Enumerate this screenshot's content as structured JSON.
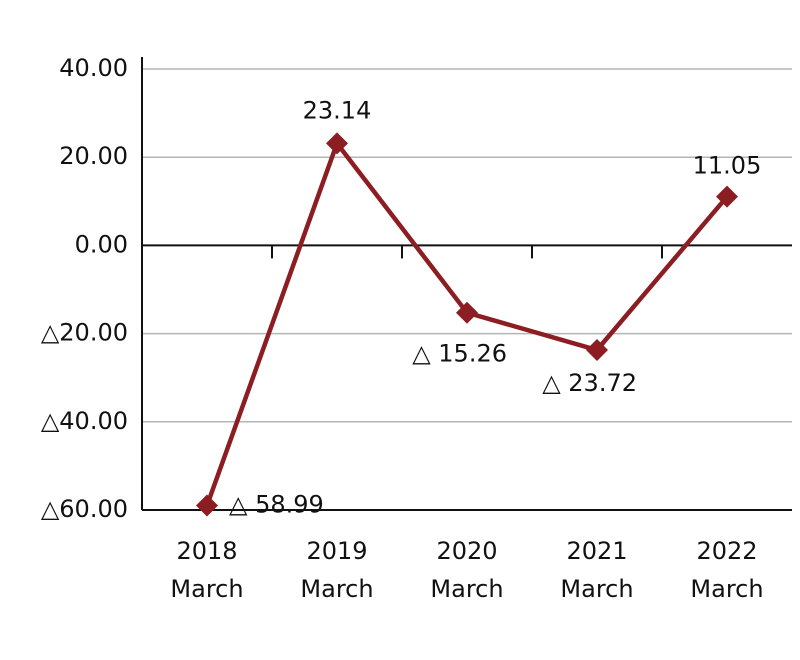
{
  "chart_data": {
    "type": "line",
    "categories": [
      [
        "2018",
        "March"
      ],
      [
        "2019",
        "March"
      ],
      [
        "2020",
        "March"
      ],
      [
        "2021",
        "March"
      ],
      [
        "2022",
        "March"
      ]
    ],
    "series": [
      {
        "color": "#8c1d22",
        "values": [
          -58.99,
          23.14,
          -15.26,
          -23.72,
          11.05
        ],
        "value_labels": [
          "△ 58.99",
          "23.14",
          "△ 15.26",
          "△ 23.72",
          "11.05"
        ]
      }
    ],
    "ylim": [
      -60,
      40
    ],
    "yticks": [
      {
        "value": -60,
        "label": "△60.00"
      },
      {
        "value": -40,
        "label": "△40.00"
      },
      {
        "value": -20,
        "label": "△20.00"
      },
      {
        "value": 0,
        "label": "0.00"
      },
      {
        "value": 20,
        "label": "20.00"
      },
      {
        "value": 40,
        "label": "40.00"
      }
    ],
    "grid": true
  }
}
